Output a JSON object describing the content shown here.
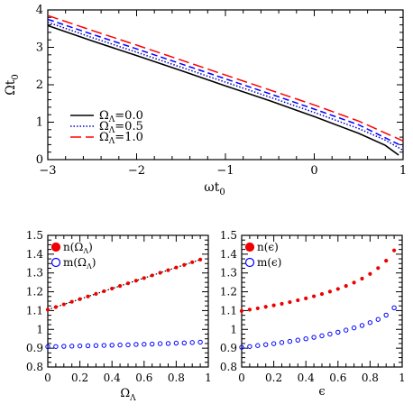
{
  "chart_data": [
    {
      "type": "line",
      "xlabel": "ωt",
      "xlabel_sub": "0",
      "ylabel": "Ωt",
      "ylabel_sub": "0",
      "xlim": [
        -3,
        1
      ],
      "ylim": [
        0,
        4
      ],
      "xticks": [
        -3,
        -2,
        -1,
        0,
        1
      ],
      "xtick_labels": [
        "−3",
        "−2",
        "−1",
        "0",
        "1"
      ],
      "yticks": [
        0,
        1,
        2,
        3,
        4
      ],
      "ytick_labels": [
        "0",
        "1",
        "2",
        "3",
        "4"
      ],
      "legend_position": "bottom-left",
      "series": [
        {
          "name": "=0.0",
          "name_symbol": "Ω",
          "name_sub": "Λ",
          "color": "#000000",
          "dash": "solid",
          "x": [
            -3,
            -2.5,
            -2,
            -1.5,
            -1,
            -0.5,
            0,
            0.5,
            0.8,
            0.95
          ],
          "y": [
            3.58,
            3.17,
            2.78,
            2.38,
            1.97,
            1.57,
            1.15,
            0.7,
            0.38,
            0.12
          ]
        },
        {
          "name": "=0.5",
          "name_symbol": "Ω",
          "name_sub": "Λ",
          "color": "#0000cc",
          "dash": "dotted",
          "x": [
            -3,
            -2.5,
            -2,
            -1.5,
            -1,
            -0.5,
            0,
            0.5,
            0.8,
            1.0
          ],
          "y": [
            3.67,
            3.26,
            2.87,
            2.47,
            2.07,
            1.67,
            1.26,
            0.83,
            0.52,
            0.25
          ]
        },
        {
          "name": "=1.0",
          "name_symbol": "Ω",
          "name_sub": "Λ",
          "color": "#0000ff",
          "dash": "short-dash",
          "x": [
            -3,
            -2.5,
            -2,
            -1.5,
            -1,
            -0.5,
            0,
            0.5,
            1.0
          ],
          "y": [
            3.75,
            3.35,
            2.96,
            2.56,
            2.16,
            1.76,
            1.35,
            0.93,
            0.35
          ]
        },
        {
          "name": "=1.0",
          "name_symbol": "Ω",
          "name_sub": "Λ",
          "color": "#ff0000",
          "dash": "long-dash",
          "x": [
            -3,
            -2.5,
            -2,
            -1.5,
            -1,
            -0.5,
            0,
            0.5,
            1.0
          ],
          "y": [
            3.85,
            3.45,
            3.06,
            2.66,
            2.26,
            1.86,
            1.46,
            1.03,
            0.5
          ]
        }
      ]
    },
    {
      "type": "scatter",
      "xlabel": "Ω",
      "xlabel_sub": "Λ",
      "ylabel": "",
      "xlim": [
        0,
        1
      ],
      "ylim": [
        0.8,
        1.5
      ],
      "xticks": [
        0,
        0.2,
        0.4,
        0.6,
        0.8,
        1
      ],
      "xtick_labels": [
        "0",
        "0.2",
        "0.4",
        "0.6",
        "0.8",
        "1"
      ],
      "yticks": [
        0.8,
        0.9,
        1.0,
        1.1,
        1.2,
        1.3,
        1.4,
        1.5
      ],
      "ytick_labels": [
        "0.8",
        "0.9",
        "1",
        "1.1",
        "1.2",
        "1.3",
        "1.4",
        "1.5"
      ],
      "legend_position": "top-left",
      "series": [
        {
          "name": "n(Ω",
          "name_sub": "Λ",
          "name_end": ")",
          "color": "#ee0000",
          "marker": "filled-circle",
          "x": [
            0.0,
            0.05,
            0.1,
            0.15,
            0.2,
            0.25,
            0.3,
            0.35,
            0.4,
            0.45,
            0.5,
            0.55,
            0.6,
            0.65,
            0.7,
            0.75,
            0.8,
            0.85,
            0.9,
            0.95
          ],
          "y": [
            1.105,
            1.119,
            1.133,
            1.147,
            1.161,
            1.175,
            1.189,
            1.203,
            1.217,
            1.231,
            1.245,
            1.259,
            1.273,
            1.287,
            1.301,
            1.315,
            1.329,
            1.343,
            1.357,
            1.371
          ]
        },
        {
          "name": "m(Ω",
          "name_sub": "Λ",
          "name_end": ")",
          "color": "#0000ff",
          "marker": "open-circle",
          "x": [
            0.0,
            0.05,
            0.1,
            0.15,
            0.2,
            0.25,
            0.3,
            0.35,
            0.4,
            0.45,
            0.5,
            0.55,
            0.6,
            0.65,
            0.7,
            0.75,
            0.8,
            0.85,
            0.9,
            0.95
          ],
          "y": [
            0.908,
            0.909,
            0.91,
            0.911,
            0.912,
            0.913,
            0.914,
            0.915,
            0.916,
            0.917,
            0.918,
            0.92,
            0.921,
            0.922,
            0.924,
            0.925,
            0.927,
            0.928,
            0.93,
            0.932
          ]
        }
      ],
      "fit_line": {
        "color": "#000000",
        "dash": "dotted",
        "x": [
          0,
          0.95
        ],
        "y": [
          1.105,
          1.371
        ]
      }
    },
    {
      "type": "scatter",
      "xlabel": "ϵ",
      "ylabel": "",
      "xlim": [
        0,
        1
      ],
      "ylim": [
        0.8,
        1.5
      ],
      "xticks": [
        0,
        0.2,
        0.4,
        0.6,
        0.8,
        1
      ],
      "xtick_labels": [
        "0",
        "0.2",
        "0.4",
        "0.6",
        "0.8",
        "1"
      ],
      "yticks": [
        0.8,
        0.9,
        1.0,
        1.1,
        1.2,
        1.3,
        1.4,
        1.5
      ],
      "ytick_labels": [
        "0.8",
        "0.9",
        "1",
        "1.1",
        "1.2",
        "1.3",
        "1.4",
        "1.5"
      ],
      "legend_position": "top-left",
      "series": [
        {
          "name": "n(ϵ)",
          "color": "#ee0000",
          "marker": "filled-circle",
          "x": [
            0.0,
            0.05,
            0.1,
            0.15,
            0.2,
            0.25,
            0.3,
            0.35,
            0.4,
            0.45,
            0.5,
            0.55,
            0.6,
            0.65,
            0.7,
            0.75,
            0.8,
            0.85,
            0.9,
            0.95
          ],
          "y": [
            1.098,
            1.105,
            1.112,
            1.12,
            1.128,
            1.136,
            1.145,
            1.155,
            1.165,
            1.176,
            1.188,
            1.201,
            1.215,
            1.231,
            1.249,
            1.27,
            1.295,
            1.326,
            1.365,
            1.42
          ]
        },
        {
          "name": "m(ϵ)",
          "color": "#0000ff",
          "marker": "open-circle",
          "x": [
            0.0,
            0.05,
            0.1,
            0.15,
            0.2,
            0.25,
            0.3,
            0.35,
            0.4,
            0.45,
            0.5,
            0.55,
            0.6,
            0.65,
            0.7,
            0.75,
            0.8,
            0.85,
            0.9,
            0.95
          ],
          "y": [
            0.905,
            0.909,
            0.914,
            0.919,
            0.924,
            0.93,
            0.936,
            0.943,
            0.95,
            0.958,
            0.966,
            0.975,
            0.985,
            0.996,
            1.008,
            1.021,
            1.036,
            1.053,
            1.076,
            1.115
          ]
        }
      ]
    }
  ]
}
